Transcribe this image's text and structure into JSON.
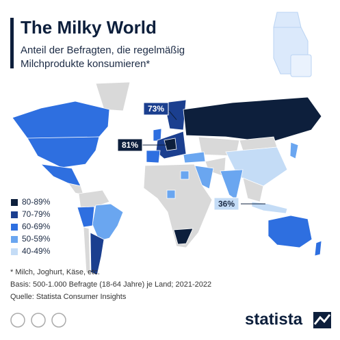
{
  "header": {
    "title": "The Milky World",
    "subtitle_lines": [
      "Anteil der Befragten, die regelmäßig",
      "Milchprodukte konsumieren*"
    ]
  },
  "legend": [
    {
      "label": "80-89%",
      "color": "#0d1f3c"
    },
    {
      "label": "70-79%",
      "color": "#1b3f8f"
    },
    {
      "label": "60-69%",
      "color": "#2e6fe0"
    },
    {
      "label": "50-59%",
      "color": "#6aa6f0"
    },
    {
      "label": "40-49%",
      "color": "#c4dcf6"
    }
  ],
  "callouts": [
    {
      "label": "73%",
      "color": "#1b3f8f"
    },
    {
      "label": "81%",
      "color": "#0d1f3c"
    },
    {
      "label": "36%",
      "color": "#c4dcf6"
    }
  ],
  "footnotes": [
    "* Milch, Joghurt, Käse, etc.",
    "Basis: 500-1.000 Befragte (18-64 Jahre) je Land; 2021-2022",
    "Quelle: Statista Consumer Insights"
  ],
  "brand": "statista"
}
